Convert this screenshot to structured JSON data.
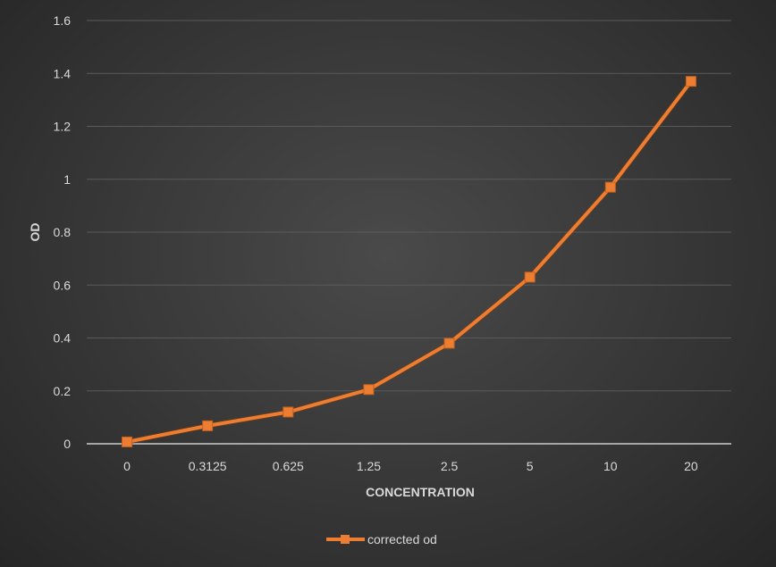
{
  "chart_data": {
    "type": "line",
    "title": "",
    "xlabel": "CONCENTRATION",
    "ylabel": "OD",
    "categories": [
      "0",
      "0.3125",
      "0.625",
      "1.25",
      "2.5",
      "5",
      "10",
      "20"
    ],
    "series": [
      {
        "name": "corrected od",
        "color": "#ED7D31",
        "values": [
          0.007,
          0.068,
          0.12,
          0.205,
          0.38,
          0.63,
          0.97,
          1.37
        ]
      }
    ],
    "ylim": [
      0,
      1.6
    ],
    "yticks": [
      "0",
      "0.2",
      "0.4",
      "0.6",
      "0.8",
      "1",
      "1.2",
      "1.4",
      "1.6"
    ],
    "grid": true,
    "legend_position": "bottom"
  }
}
